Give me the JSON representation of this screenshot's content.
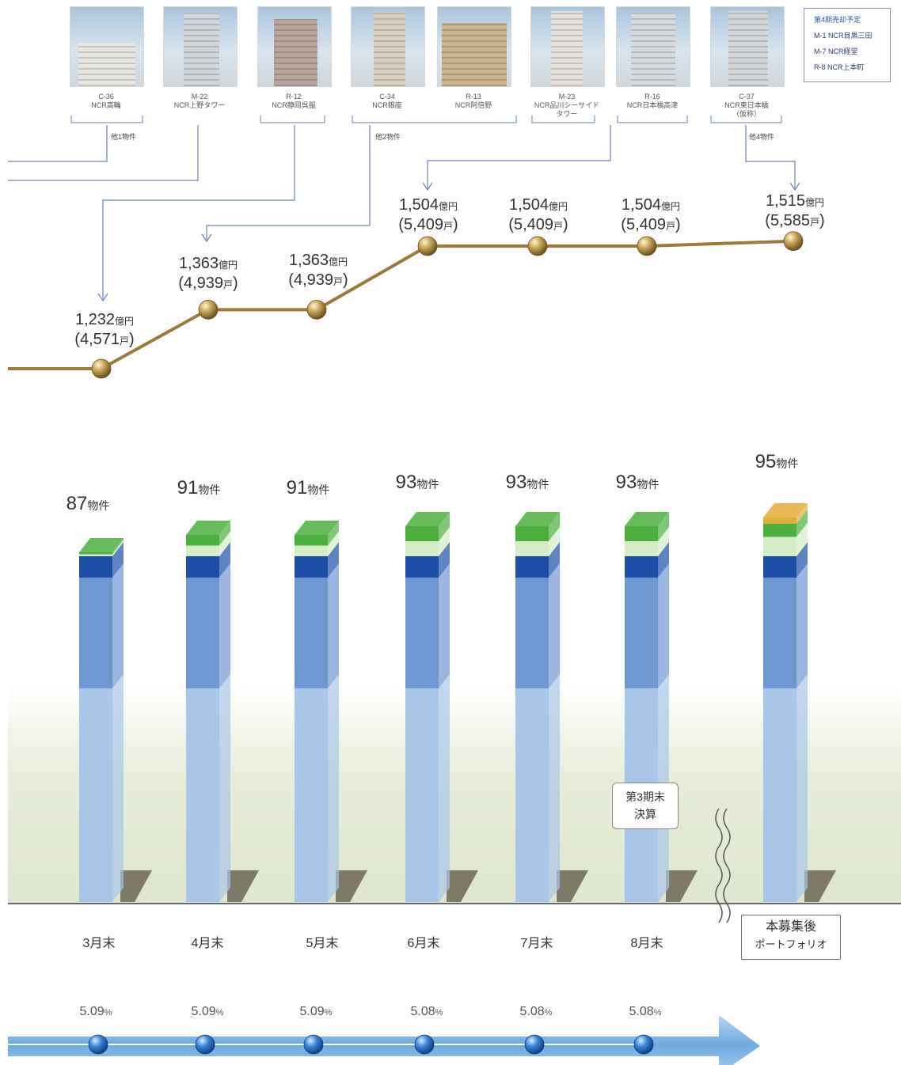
{
  "chart_data": {
    "type": "bar",
    "categories": [
      "3月末",
      "4月末",
      "5月末",
      "6月末",
      "7月末",
      "8月末",
      "本募集後ポートフォリオ"
    ],
    "property_counts": [
      {
        "value": "87",
        "unit": "物件"
      },
      {
        "value": "91",
        "unit": "物件"
      },
      {
        "value": "91",
        "unit": "物件"
      },
      {
        "value": "93",
        "unit": "物件"
      },
      {
        "value": "93",
        "unit": "物件"
      },
      {
        "value": "93",
        "unit": "物件"
      },
      {
        "value": "95",
        "unit": "物件"
      }
    ],
    "bar_values": [
      87,
      91,
      91,
      93,
      93,
      93,
      95
    ],
    "asset_values": [
      {
        "amount": "1,232",
        "amount_unit": "億円",
        "units": "4,571",
        "units_unit": "戸"
      },
      {
        "amount": "1,363",
        "amount_unit": "億円",
        "units": "4,939",
        "units_unit": "戸"
      },
      {
        "amount": "1,363",
        "amount_unit": "億円",
        "units": "4,939",
        "units_unit": "戸"
      },
      {
        "amount": "1,504",
        "amount_unit": "億円",
        "units": "5,409",
        "units_unit": "戸"
      },
      {
        "amount": "1,504",
        "amount_unit": "億円",
        "units": "5,409",
        "units_unit": "戸"
      },
      {
        "amount": "1,504",
        "amount_unit": "億円",
        "units": "5,409",
        "units_unit": "戸"
      },
      {
        "amount": "1,515",
        "amount_unit": "億円",
        "units": "5,585",
        "units_unit": "戸"
      }
    ],
    "asset_line_values": [
      1232,
      1363,
      1363,
      1504,
      1504,
      1504,
      1515
    ],
    "yields": [
      {
        "value": "5.09",
        "unit": "%"
      },
      {
        "value": "5.09",
        "unit": "%"
      },
      {
        "value": "5.09",
        "unit": "%"
      },
      {
        "value": "5.08",
        "unit": "%"
      },
      {
        "value": "5.08",
        "unit": "%"
      },
      {
        "value": "5.08",
        "unit": "%"
      }
    ],
    "yield_values": [
      5.09,
      5.09,
      5.09,
      5.08,
      5.08,
      5.08
    ],
    "note_box": [
      "第3期末",
      "決算"
    ],
    "after_box": [
      "本募集後",
      "ポートフォリオ"
    ]
  },
  "properties": [
    {
      "code": "C-36",
      "name": "NCR高輪"
    },
    {
      "code": "M-22",
      "name": "NCR上野タワー"
    },
    {
      "code": "R-12",
      "name": "NCR静岡呉服"
    },
    {
      "code": "C-34",
      "name": "NCR銀座"
    },
    {
      "code": "R-13",
      "name": "NCR阿倍野"
    },
    {
      "code": "M-23",
      "name": "NCR品川シーサイド",
      "name2": "タワー"
    },
    {
      "code": "R-16",
      "name": "NCR日本橋高津"
    },
    {
      "code": "C-37",
      "name": "NCR東日本橋",
      "name2": "（仮称）"
    }
  ],
  "others": [
    "他1物件",
    "他2物件",
    "他4物件"
  ],
  "legend": {
    "title": "第4期売却予定",
    "items": [
      "M-1 NCR目黒三田",
      "M-7 NCR経堂",
      "R-8 NCR上本町"
    ]
  },
  "colors": {
    "segment_light_blue": "#a9c6e8",
    "segment_mid_blue": "#6f97d2",
    "segment_dark_blue": "#1d4fa8",
    "segment_pale_green": "#d6ecc7",
    "segment_green": "#4caf3f",
    "segment_gold": "#e2ae3a",
    "line_gold": "#9b7a3a",
    "yield_arrow": "#6ea9df"
  }
}
